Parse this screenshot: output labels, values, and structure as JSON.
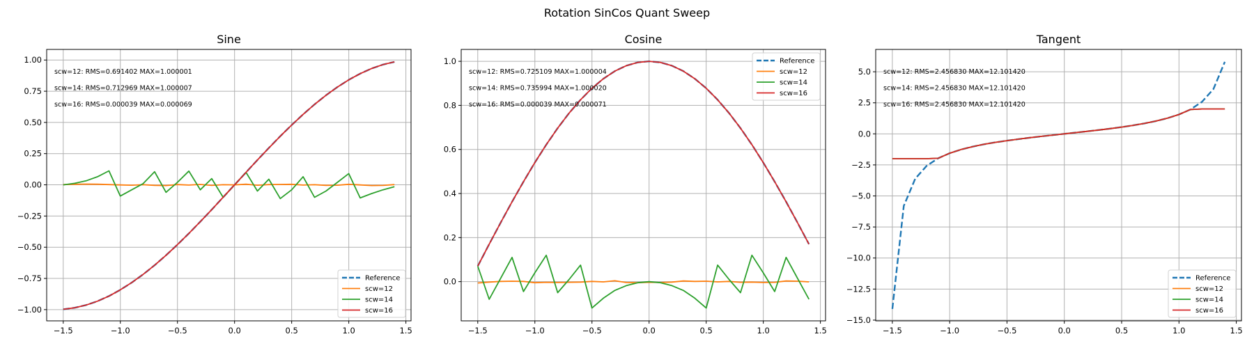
{
  "suptitle": "Rotation SinCos Quant Sweep",
  "colors": {
    "Reference": "#1f77b4",
    "scw=12": "#ff7f0e",
    "scw=14": "#2ca02c",
    "scw=16": "#d62728",
    "grid": "#b0b0b0"
  },
  "chart_data": [
    {
      "type": "line",
      "title": "Sine",
      "xlim": [
        -1.645,
        1.545
      ],
      "ylim": [
        -1.09,
        1.085
      ],
      "grid": true,
      "legend": "lower right",
      "xticks": [
        -1.5,
        -1.0,
        -0.5,
        0.0,
        0.5,
        1.0,
        1.5
      ],
      "xtick_labels": [
        "−1.5",
        "−1.0",
        "−0.5",
        "0.0",
        "0.5",
        "1.0",
        "1.5"
      ],
      "yticks": [
        -1.0,
        -0.75,
        -0.5,
        -0.25,
        0.0,
        0.25,
        0.5,
        0.75,
        1.0
      ],
      "ytick_labels": [
        "−1.00",
        "−0.75",
        "−0.50",
        "−0.25",
        "0.00",
        "0.25",
        "0.50",
        "0.75",
        "1.00"
      ],
      "annotations": [
        "scw=12: RMS=0.691402 MAX=1.000001",
        "scw=14: RMS=0.712969 MAX=1.000007",
        "scw=16: RMS=0.000039 MAX=0.000069"
      ],
      "x": [
        -1.5,
        -1.4,
        -1.3,
        -1.2,
        -1.1,
        -1.0,
        -0.9,
        -0.8,
        -0.7,
        -0.6,
        -0.5,
        -0.4,
        -0.3,
        -0.2,
        -0.1,
        0.0,
        0.1,
        0.2,
        0.3,
        0.4,
        0.5,
        0.6,
        0.7,
        0.8,
        0.9,
        1.0,
        1.1,
        1.2,
        1.3,
        1.4
      ],
      "series": [
        {
          "name": "Reference",
          "style": "dashed",
          "values": [
            -0.9975,
            -0.9854,
            -0.9636,
            -0.932,
            -0.8912,
            -0.8415,
            -0.7833,
            -0.7174,
            -0.6442,
            -0.5646,
            -0.4794,
            -0.3894,
            -0.2955,
            -0.1987,
            -0.0998,
            0.0,
            0.0998,
            0.1987,
            0.2955,
            0.3894,
            0.4794,
            0.5646,
            0.6442,
            0.7174,
            0.7833,
            0.8415,
            0.8912,
            0.932,
            0.9636,
            0.9854
          ]
        },
        {
          "name": "scw=12",
          "style": "solid",
          "values": [
            0.002,
            0.004,
            0.006,
            0.005,
            0.002,
            -0.001,
            -0.003,
            0.001,
            -0.004,
            -0.006,
            0.002,
            -0.002,
            0.003,
            -0.005,
            0.001,
            0.0,
            0.005,
            -0.003,
            0.002,
            0.003,
            0.004,
            -0.002,
            0.001,
            -0.004,
            -0.003,
            0.004,
            -0.001,
            -0.006,
            -0.005,
            0.002
          ]
        },
        {
          "name": "scw=14",
          "style": "solid",
          "values": [
            0.0,
            0.012,
            0.032,
            0.065,
            0.112,
            -0.09,
            -0.04,
            0.01,
            0.105,
            -0.06,
            0.02,
            0.11,
            -0.04,
            0.05,
            -0.1,
            0.0,
            0.1,
            -0.05,
            0.045,
            -0.11,
            -0.04,
            0.065,
            -0.1,
            -0.05,
            0.02,
            0.09,
            -0.105,
            -0.07,
            -0.04,
            -0.015
          ]
        },
        {
          "name": "scw=16",
          "style": "solid",
          "values": [
            -0.9975,
            -0.9854,
            -0.9636,
            -0.932,
            -0.8912,
            -0.8415,
            -0.7833,
            -0.7174,
            -0.6442,
            -0.5646,
            -0.4794,
            -0.3894,
            -0.2955,
            -0.1987,
            -0.0998,
            0.0,
            0.0998,
            0.1987,
            0.2955,
            0.3894,
            0.4794,
            0.5646,
            0.6442,
            0.7174,
            0.7833,
            0.8415,
            0.8912,
            0.932,
            0.9636,
            0.9854
          ]
        }
      ]
    },
    {
      "type": "line",
      "title": "Cosine",
      "xlim": [
        -1.645,
        1.545
      ],
      "ylim": [
        -0.178,
        1.054
      ],
      "grid": true,
      "legend": "upper right",
      "xticks": [
        -1.5,
        -1.0,
        -0.5,
        0.0,
        0.5,
        1.0,
        1.5
      ],
      "xtick_labels": [
        "−1.5",
        "−1.0",
        "−0.5",
        "0.0",
        "0.5",
        "1.0",
        "1.5"
      ],
      "yticks": [
        0.0,
        0.2,
        0.4,
        0.6,
        0.8,
        1.0
      ],
      "ytick_labels": [
        "0.0",
        "0.2",
        "0.4",
        "0.6",
        "0.8",
        "1.0"
      ],
      "annotations": [
        "scw=12: RMS=0.725109 MAX=1.000004",
        "scw=14: RMS=0.735994 MAX=1.000020",
        "scw=16: RMS=0.000039 MAX=0.000071"
      ],
      "x": [
        -1.5,
        -1.4,
        -1.3,
        -1.2,
        -1.1,
        -1.0,
        -0.9,
        -0.8,
        -0.7,
        -0.6,
        -0.5,
        -0.4,
        -0.3,
        -0.2,
        -0.1,
        0.0,
        0.1,
        0.2,
        0.3,
        0.4,
        0.5,
        0.6,
        0.7,
        0.8,
        0.9,
        1.0,
        1.1,
        1.2,
        1.3,
        1.4
      ],
      "series": [
        {
          "name": "Reference",
          "style": "dashed",
          "values": [
            0.0707,
            0.17,
            0.2675,
            0.3624,
            0.4536,
            0.5403,
            0.6216,
            0.6967,
            0.7648,
            0.8253,
            0.8776,
            0.9211,
            0.9553,
            0.9801,
            0.995,
            1.0,
            0.995,
            0.9801,
            0.9553,
            0.9211,
            0.8776,
            0.8253,
            0.7648,
            0.6967,
            0.6216,
            0.5403,
            0.4536,
            0.3624,
            0.2675,
            0.17
          ]
        },
        {
          "name": "scw=12",
          "style": "solid",
          "values": [
            -0.006,
            -0.002,
            0.001,
            0.002,
            0.001,
            -0.005,
            -0.003,
            -0.004,
            -0.003,
            -0.002,
            0.001,
            -0.001,
            0.004,
            -0.004,
            -0.005,
            -0.003,
            -0.004,
            -0.002,
            0.003,
            0.001,
            0.002,
            -0.001,
            0.001,
            -0.003,
            -0.002,
            -0.004,
            -0.003,
            0.003,
            0.002,
            -0.001
          ]
        },
        {
          "name": "scw=14",
          "style": "solid",
          "values": [
            0.07,
            -0.08,
            0.015,
            0.11,
            -0.045,
            0.04,
            0.12,
            -0.05,
            0.01,
            0.075,
            -0.12,
            -0.075,
            -0.04,
            -0.018,
            -0.005,
            0.0,
            -0.005,
            -0.018,
            -0.04,
            -0.075,
            -0.12,
            0.075,
            0.01,
            -0.05,
            0.12,
            0.04,
            -0.045,
            0.11,
            0.015,
            -0.08
          ]
        },
        {
          "name": "scw=16",
          "style": "solid",
          "values": [
            0.0707,
            0.17,
            0.2675,
            0.3624,
            0.4536,
            0.5403,
            0.6216,
            0.6967,
            0.7648,
            0.8253,
            0.8776,
            0.9211,
            0.9553,
            0.9801,
            0.995,
            1.0,
            0.995,
            0.9801,
            0.9553,
            0.9211,
            0.8776,
            0.8253,
            0.7648,
            0.6967,
            0.6216,
            0.5403,
            0.4536,
            0.3624,
            0.2675,
            0.17
          ]
        }
      ]
    },
    {
      "type": "line",
      "title": "Tangent",
      "xlim": [
        -1.645,
        1.545
      ],
      "ylim": [
        -15.06,
        6.8
      ],
      "grid": true,
      "legend": "lower right",
      "xticks": [
        -1.5,
        -1.0,
        -0.5,
        0.0,
        0.5,
        1.0,
        1.5
      ],
      "xtick_labels": [
        "−1.5",
        "−1.0",
        "−0.5",
        "0.0",
        "0.5",
        "1.0",
        "1.5"
      ],
      "yticks": [
        -15.0,
        -12.5,
        -10.0,
        -7.5,
        -5.0,
        -2.5,
        0.0,
        2.5,
        5.0
      ],
      "ytick_labels": [
        "−15.0",
        "−12.5",
        "−10.0",
        "−7.5",
        "−5.0",
        "−2.5",
        "0.0",
        "2.5",
        "5.0"
      ],
      "annotations": [
        "scw=12: RMS=2.456830 MAX=12.101420",
        "scw=14: RMS=2.456830 MAX=12.101420",
        "scw=16: RMS=2.456830 MAX=12.101420"
      ],
      "x": [
        -1.5,
        -1.4,
        -1.3,
        -1.2,
        -1.1,
        -1.0,
        -0.9,
        -0.8,
        -0.7,
        -0.6,
        -0.5,
        -0.4,
        -0.3,
        -0.2,
        -0.1,
        0.0,
        0.1,
        0.2,
        0.3,
        0.4,
        0.5,
        0.6,
        0.7,
        0.8,
        0.9,
        1.0,
        1.1,
        1.2,
        1.3,
        1.4
      ],
      "series": [
        {
          "name": "Reference",
          "style": "dashed",
          "values": [
            -14.1014,
            -5.7979,
            -3.6021,
            -2.5722,
            -1.9648,
            -1.5574,
            -1.2602,
            -1.0296,
            -0.8423,
            -0.6841,
            -0.5463,
            -0.4228,
            -0.3093,
            -0.2027,
            -0.1003,
            0.0,
            0.1003,
            0.2027,
            0.3093,
            0.4228,
            0.5463,
            0.6841,
            0.8423,
            1.0296,
            1.2602,
            1.5574,
            1.9648,
            2.5722,
            3.6021,
            5.7979
          ]
        },
        {
          "name": "scw=12",
          "style": "solid",
          "values": [
            -2.0,
            -2.0,
            -2.0,
            -2.0,
            -1.9648,
            -1.5574,
            -1.2602,
            -1.0296,
            -0.8423,
            -0.6841,
            -0.5463,
            -0.4228,
            -0.3093,
            -0.2027,
            -0.1003,
            0.0,
            0.1003,
            0.2027,
            0.3093,
            0.4228,
            0.5463,
            0.6841,
            0.8423,
            1.0296,
            1.2602,
            1.5574,
            1.9648,
            2.0,
            2.0,
            2.0
          ]
        },
        {
          "name": "scw=14",
          "style": "solid",
          "values": [
            -2.0,
            -2.0,
            -2.0,
            -2.0,
            -1.9648,
            -1.5574,
            -1.2602,
            -1.0296,
            -0.8423,
            -0.6841,
            -0.5463,
            -0.4228,
            -0.3093,
            -0.2027,
            -0.1003,
            0.0,
            0.1003,
            0.2027,
            0.3093,
            0.4228,
            0.5463,
            0.6841,
            0.8423,
            1.0296,
            1.2602,
            1.5574,
            1.9648,
            2.0,
            2.0,
            2.0
          ]
        },
        {
          "name": "scw=16",
          "style": "solid",
          "values": [
            -2.0,
            -2.0,
            -2.0,
            -2.0,
            -1.9648,
            -1.5574,
            -1.2602,
            -1.0296,
            -0.8423,
            -0.6841,
            -0.5463,
            -0.4228,
            -0.3093,
            -0.2027,
            -0.1003,
            0.0,
            0.1003,
            0.2027,
            0.3093,
            0.4228,
            0.5463,
            0.6841,
            0.8423,
            1.0296,
            1.2602,
            1.5574,
            1.9648,
            2.0,
            2.0,
            2.0
          ]
        }
      ]
    }
  ]
}
